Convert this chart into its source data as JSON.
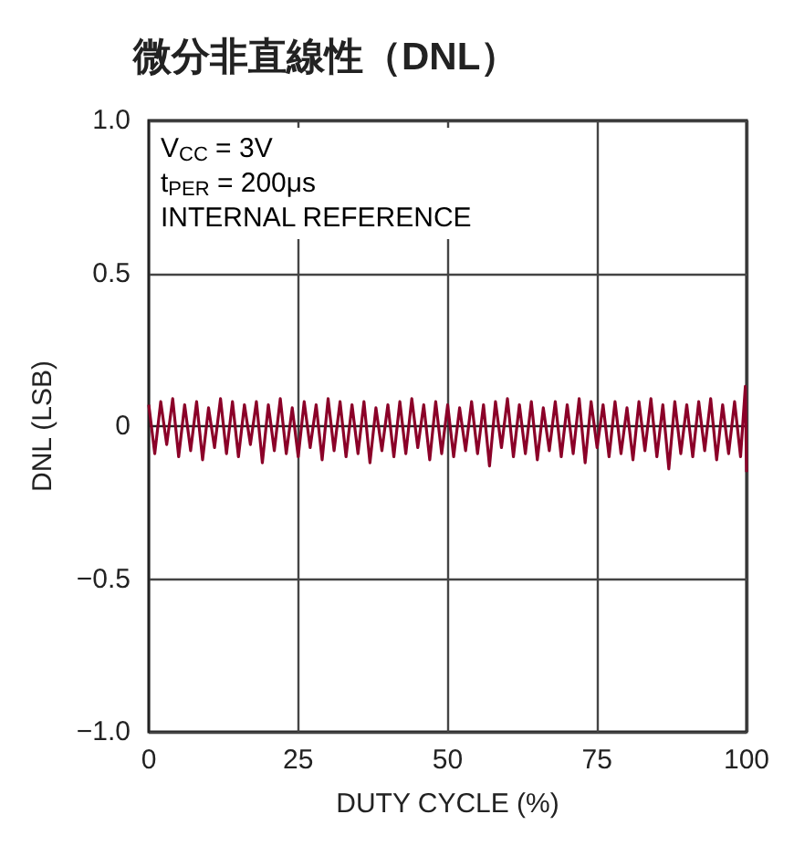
{
  "chart_data": {
    "type": "line",
    "title": "微分非直線性（DNL）",
    "xlabel": "DUTY CYCLE (%)",
    "ylabel": "DNL (LSB)",
    "annotations": [
      "V$_{CC}$ = 3V",
      "t$_{PER}$ = 200μs",
      "INTERNAL REFERENCE"
    ],
    "x": [
      0,
      1,
      2,
      3,
      4,
      5,
      6,
      7,
      8,
      9,
      10,
      11,
      12,
      13,
      14,
      15,
      16,
      17,
      18,
      19,
      20,
      21,
      22,
      23,
      24,
      25,
      26,
      27,
      28,
      29,
      30,
      31,
      32,
      33,
      34,
      35,
      36,
      37,
      38,
      39,
      40,
      41,
      42,
      43,
      44,
      45,
      46,
      47,
      48,
      49,
      50,
      51,
      52,
      53,
      54,
      55,
      56,
      57,
      58,
      59,
      60,
      61,
      62,
      63,
      64,
      65,
      66,
      67,
      68,
      69,
      70,
      71,
      72,
      73,
      74,
      75,
      76,
      77,
      78,
      79,
      80,
      81,
      82,
      83,
      84,
      85,
      86,
      87,
      88,
      89,
      90,
      91,
      92,
      93,
      94,
      95,
      96,
      97,
      98,
      99,
      99.8,
      100
    ],
    "series": [
      {
        "color": "#8b0028",
        "values": [
          0.07,
          -0.09,
          0.08,
          -0.06,
          0.09,
          -0.1,
          0.07,
          -0.08,
          0.08,
          -0.11,
          0.06,
          -0.07,
          0.09,
          -0.09,
          0.08,
          -0.1,
          0.07,
          -0.06,
          0.08,
          -0.12,
          0.07,
          -0.08,
          0.09,
          -0.09,
          0.06,
          -0.1,
          0.08,
          -0.07,
          0.07,
          -0.11,
          0.09,
          -0.08,
          0.08,
          -0.1,
          0.07,
          -0.09,
          0.08,
          -0.12,
          0.06,
          -0.08,
          0.07,
          -0.1,
          0.08,
          -0.09,
          0.09,
          -0.07,
          0.07,
          -0.11,
          0.08,
          -0.09,
          0.07,
          -0.1,
          0.06,
          -0.08,
          0.08,
          -0.09,
          0.07,
          -0.13,
          0.08,
          -0.07,
          0.09,
          -0.1,
          0.07,
          -0.09,
          0.08,
          -0.11,
          0.06,
          -0.08,
          0.08,
          -0.1,
          0.07,
          -0.09,
          0.09,
          -0.12,
          0.08,
          -0.07,
          0.07,
          -0.1,
          0.08,
          -0.09,
          0.06,
          -0.11,
          0.08,
          -0.08,
          0.09,
          -0.1,
          0.07,
          -0.14,
          0.08,
          -0.09,
          0.07,
          -0.1,
          0.08,
          -0.08,
          0.09,
          -0.11,
          0.07,
          -0.09,
          0.08,
          -0.1,
          0.13,
          -0.15
        ]
      }
    ],
    "xlim": [
      0,
      100
    ],
    "xticks": [
      0,
      25,
      50,
      75,
      100
    ],
    "ylim": [
      -1,
      1
    ],
    "yticks": [
      {
        "value": -1,
        "label": "−1.0"
      },
      {
        "value": -0.5,
        "label": "−0.5"
      },
      0,
      0.5,
      {
        "value": 1,
        "label": "1.0"
      }
    ],
    "grid": true,
    "marker": "none",
    "line_style": "solid"
  }
}
